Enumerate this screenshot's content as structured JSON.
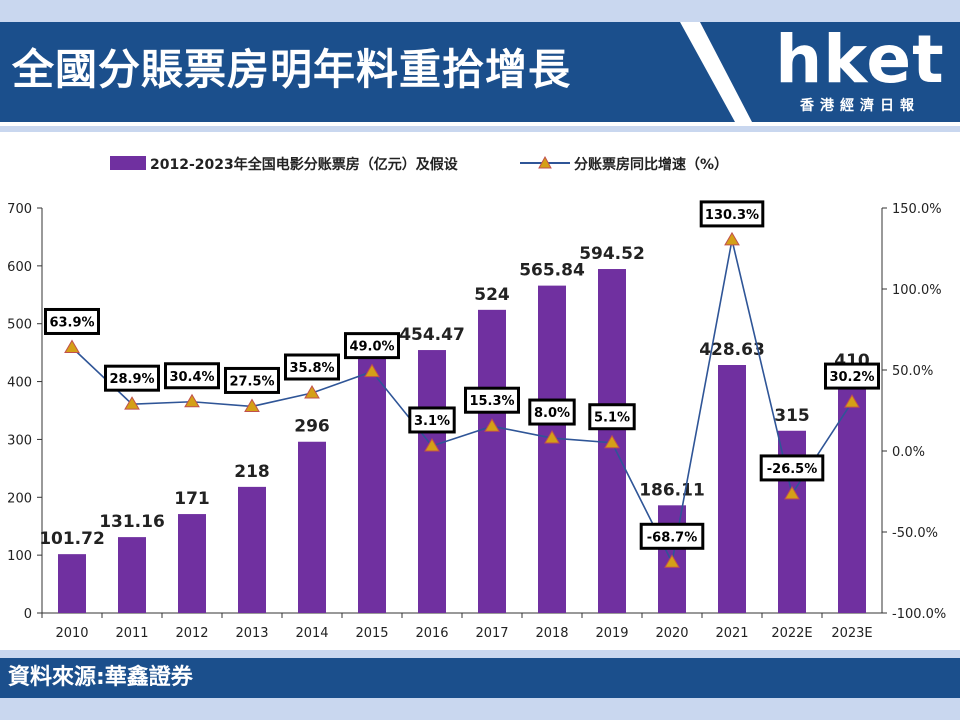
{
  "header": {
    "title": "全國分賬票房明年料重拾增長",
    "logo_word": "hket",
    "logo_sub": "香港經濟日報"
  },
  "footer": {
    "source": "資料來源:華鑫證券"
  },
  "colors": {
    "brand_blue": "#1b4f8c",
    "bar": "#7030a0",
    "line": "#2f5597",
    "marker": "#d4a017",
    "marker_stroke": "#c0504d"
  },
  "chart_data": {
    "type": "bar",
    "categories": [
      "2010",
      "2011",
      "2012",
      "2013",
      "2014",
      "2015",
      "2016",
      "2017",
      "2018",
      "2019",
      "2020",
      "2021",
      "2022E",
      "2023E"
    ],
    "series": [
      {
        "name": "2012-2023年全国电影分账票房（亿元）及假设",
        "type": "bar",
        "axis": "left",
        "values": [
          101.72,
          131.16,
          171,
          218,
          296,
          440,
          454.47,
          524,
          565.84,
          594.52,
          186.11,
          428.63,
          315,
          410
        ],
        "labels": [
          "101.72",
          "131.16",
          "171",
          "218",
          "296",
          "",
          "454.47",
          "524",
          "565.84",
          "594.52",
          "186.11",
          "428.63",
          "315",
          "410"
        ]
      },
      {
        "name": "分账票房同比增速（%）",
        "type": "line",
        "axis": "right",
        "values": [
          63.9,
          28.9,
          30.4,
          27.5,
          35.8,
          49.0,
          3.1,
          15.3,
          8.0,
          5.1,
          -68.7,
          130.3,
          -26.5,
          30.2
        ],
        "labels": [
          "63.9%",
          "28.9%",
          "30.4%",
          "27.5%",
          "35.8%",
          "49.0%",
          "3.1%",
          "15.3%",
          "8.0%",
          "5.1%",
          "-68.7%",
          "130.3%",
          "-26.5%",
          "30.2%"
        ]
      }
    ],
    "y_left": {
      "min": 0,
      "max": 700,
      "ticks": [
        "0",
        "100",
        "200",
        "300",
        "400",
        "500",
        "600",
        "700"
      ]
    },
    "y_right": {
      "min": -100,
      "max": 150,
      "ticks": [
        "-100.0%",
        "-50.0%",
        "0.0%",
        "50.0%",
        "100.0%",
        "150.0%"
      ]
    },
    "legend_position": "top",
    "grid": false
  }
}
